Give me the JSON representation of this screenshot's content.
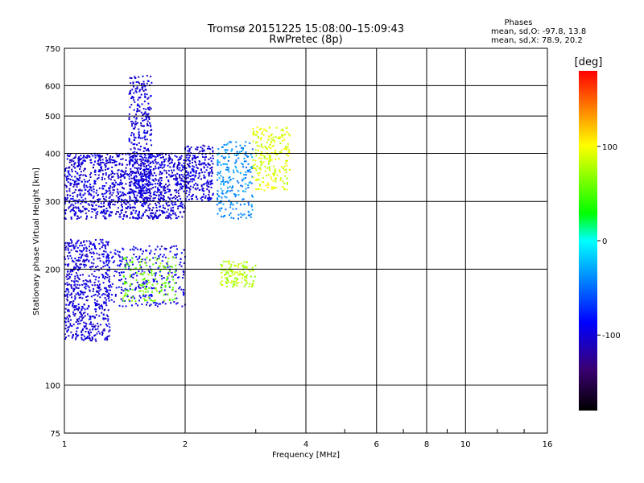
{
  "chart_data": {
    "type": "scatter",
    "title": "Tromsø 20151225 15:08:00–15:09:43",
    "subtitle": "RwPretec (8p)",
    "stats": {
      "heading": "Phases",
      "line_o": "mean, sd,O: -97.8, 13.8",
      "line_x": "mean, sd,X:  78.9, 20.2"
    },
    "xlabel": "Frequency [MHz]",
    "ylabel": "Stationary phase Virtual Height [km]",
    "x_scale": "log",
    "y_scale": "log",
    "xlim": [
      1,
      16
    ],
    "ylim": [
      75,
      750
    ],
    "x_ticks": [
      1,
      2,
      4,
      6,
      8,
      10,
      16
    ],
    "x_tick_labels": [
      "1",
      "2",
      "4",
      "6",
      "8",
      "10",
      "16"
    ],
    "y_ticks": [
      75,
      100,
      200,
      300,
      400,
      500,
      600,
      750
    ],
    "y_tick_labels": [
      "75",
      "100",
      "200",
      "300",
      "400",
      "500",
      "600",
      "750"
    ],
    "grid": true,
    "colorbar": {
      "label": "[deg]",
      "range": [
        -180,
        180
      ],
      "ticks": [
        100,
        0,
        -100
      ],
      "tick_labels": [
        "100",
        "0",
        "-100"
      ],
      "colormap": [
        "#000000",
        "#3a0070",
        "#0000ff",
        "#00ffff",
        "#00ff00",
        "#ffff00",
        "#ff0000"
      ]
    },
    "clusters": [
      {
        "desc": "F-layer trace, blue",
        "x": [
          1.0,
          2.0
        ],
        "y": [
          270,
          400
        ],
        "phase": -100,
        "count": 1200
      },
      {
        "desc": "Spread plume, blue",
        "x": [
          1.45,
          1.65
        ],
        "y": [
          300,
          640
        ],
        "phase": -100,
        "count": 350
      },
      {
        "desc": "Upper F, blue",
        "x": [
          2.0,
          2.35
        ],
        "y": [
          300,
          420
        ],
        "phase": -100,
        "count": 250
      },
      {
        "desc": "E/F1 region, blue",
        "x": [
          1.0,
          1.3
        ],
        "y": [
          130,
          240
        ],
        "phase": -100,
        "count": 600
      },
      {
        "desc": "Mid layer, blue",
        "x": [
          1.25,
          2.0
        ],
        "y": [
          160,
          230
        ],
        "phase": -95,
        "count": 300
      },
      {
        "desc": "Mid layer, yellow-green",
        "x": [
          1.4,
          1.9
        ],
        "y": [
          165,
          215
        ],
        "phase": 60,
        "count": 150
      },
      {
        "desc": "Cluster near 2.5 MHz",
        "x": [
          2.4,
          2.95
        ],
        "y": [
          270,
          430
        ],
        "phase": -40,
        "count": 220
      },
      {
        "desc": "Cluster near 3 MHz, yellow",
        "x": [
          2.95,
          3.65
        ],
        "y": [
          320,
          470
        ],
        "phase": 90,
        "count": 220
      },
      {
        "desc": "Cluster near 2.7 MHz, low",
        "x": [
          2.45,
          3.0
        ],
        "y": [
          180,
          210
        ],
        "phase": 80,
        "count": 120
      }
    ]
  }
}
